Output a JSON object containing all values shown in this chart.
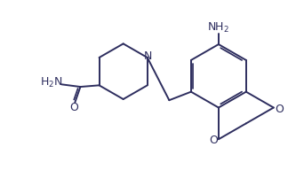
{
  "background_color": "#ffffff",
  "bond_color": "#2d2d5e",
  "text_color": "#2d2d5e",
  "figsize": [
    3.42,
    1.92
  ],
  "dpi": 100,
  "xlim": [
    0,
    10
  ],
  "ylim": [
    0,
    5.6
  ]
}
